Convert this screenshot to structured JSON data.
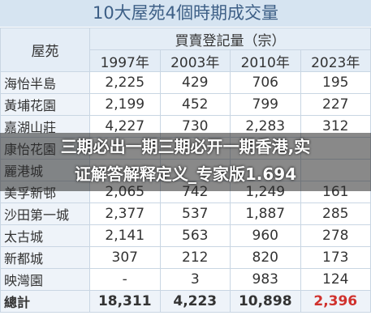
{
  "header": {
    "title": "10大屋苑4個時期成交量",
    "corner": "屋苑",
    "group": "買賣登記量（宗）",
    "years": [
      "1997年",
      "2003年",
      "2010年",
      "2023年"
    ]
  },
  "table": {
    "rows": [
      {
        "name": "海怡半島",
        "cells": [
          "2,225",
          "429",
          "706",
          "195"
        ]
      },
      {
        "name": "黃埔花園",
        "cells": [
          "2,199",
          "452",
          "799",
          "227"
        ]
      },
      {
        "name": "嘉湖山莊",
        "cells": [
          "4,227",
          "730",
          "2,283",
          "312"
        ]
      },
      {
        "name": "康怡花園"
      },
      {
        "name": "麗港城"
      },
      {
        "name": "美孚新邨",
        "cells": [
          "2,065",
          "742",
          "1,249",
          "161"
        ]
      },
      {
        "name": "沙田第一城",
        "cells": [
          "2,377",
          "537",
          "1,887",
          "285"
        ]
      },
      {
        "name": "太古城",
        "cells": [
          "2,141",
          "563",
          "960",
          "278"
        ]
      },
      {
        "name": "新都城",
        "cells": [
          "307",
          "212",
          "820",
          "173"
        ]
      },
      {
        "name": "映灣園",
        "cells": [
          "-",
          "3",
          "983",
          "124"
        ]
      }
    ],
    "total": {
      "name": "總計",
      "cells": [
        "18,311",
        "4,223",
        "10,898",
        "2,396"
      ]
    }
  },
  "overlay": {
    "lines": [
      "三期必出一期三期必开一期香港,实",
      "证解答解释定义_专家版1.694"
    ]
  }
}
